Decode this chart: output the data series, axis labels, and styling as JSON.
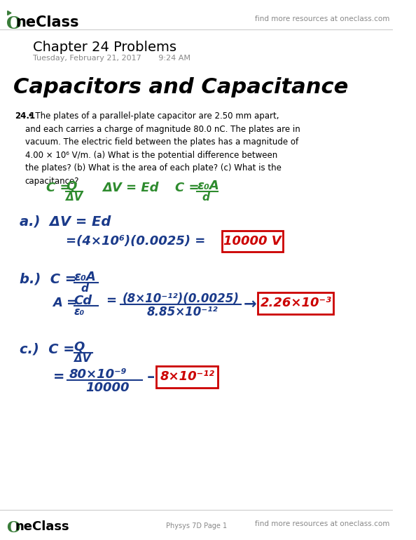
{
  "bg_color": "#ffffff",
  "header_logo_text": "OneClass",
  "header_right_text": "find more resources at oneclass.com",
  "chapter_title": "Chapter 24 Problems",
  "date_text": "Tuesday, February 21, 2017       9:24 AM",
  "handwritten_title": "Capacitors and Capacitance",
  "problem_bold": "24.1",
  "problem_text": " • The plates of a parallel-plate capacitor are 2.50 mm apart, and each carries a charge of magnitude 80.0 nC. The plates are in vacuum. The electric field between the plates has a magnitude of 4.00 × 10⁶ V/m. (a) What is the potential difference between the plates? (b) What is the area of each plate? (c) What is the capacitance?",
  "formula_line": "C = Q/ΔV     ΔV = Ed     C = ε₀A/d",
  "part_a_label": "a.)  ΔV = Ed",
  "part_a_step": "=(4×10⁶)(0.0025) =",
  "part_a_answer": "10000 V",
  "part_b_label": "b.)  C = ε₀A",
  "part_b_sub": "          d",
  "part_b_step1": "A = Cd",
  "part_b_step1b": "      ε₀",
  "part_b_step2": "= (8×10⁻¹²)(0.0025)",
  "part_b_step2b": "    8.85×10⁻¹²",
  "part_b_arrow": "→",
  "part_b_answer": "2.26×10⁻³",
  "part_c_label": "c.)  C = Q",
  "part_c_sub": "          ΔV",
  "part_c_step": "= 80×10⁻⁹",
  "part_c_step2": "  10000",
  "part_c_answer": "8×10⁻¹²",
  "footer_logo": "OneClass",
  "footer_center": "Physys 7D Page 1",
  "footer_right": "find more resources at oneclass.com",
  "green_color": "#2e8b2e",
  "blue_color": "#1a3a8a",
  "red_color": "#cc0000",
  "gray_color": "#888888",
  "black_color": "#000000",
  "logo_green": "#3a7d3a"
}
